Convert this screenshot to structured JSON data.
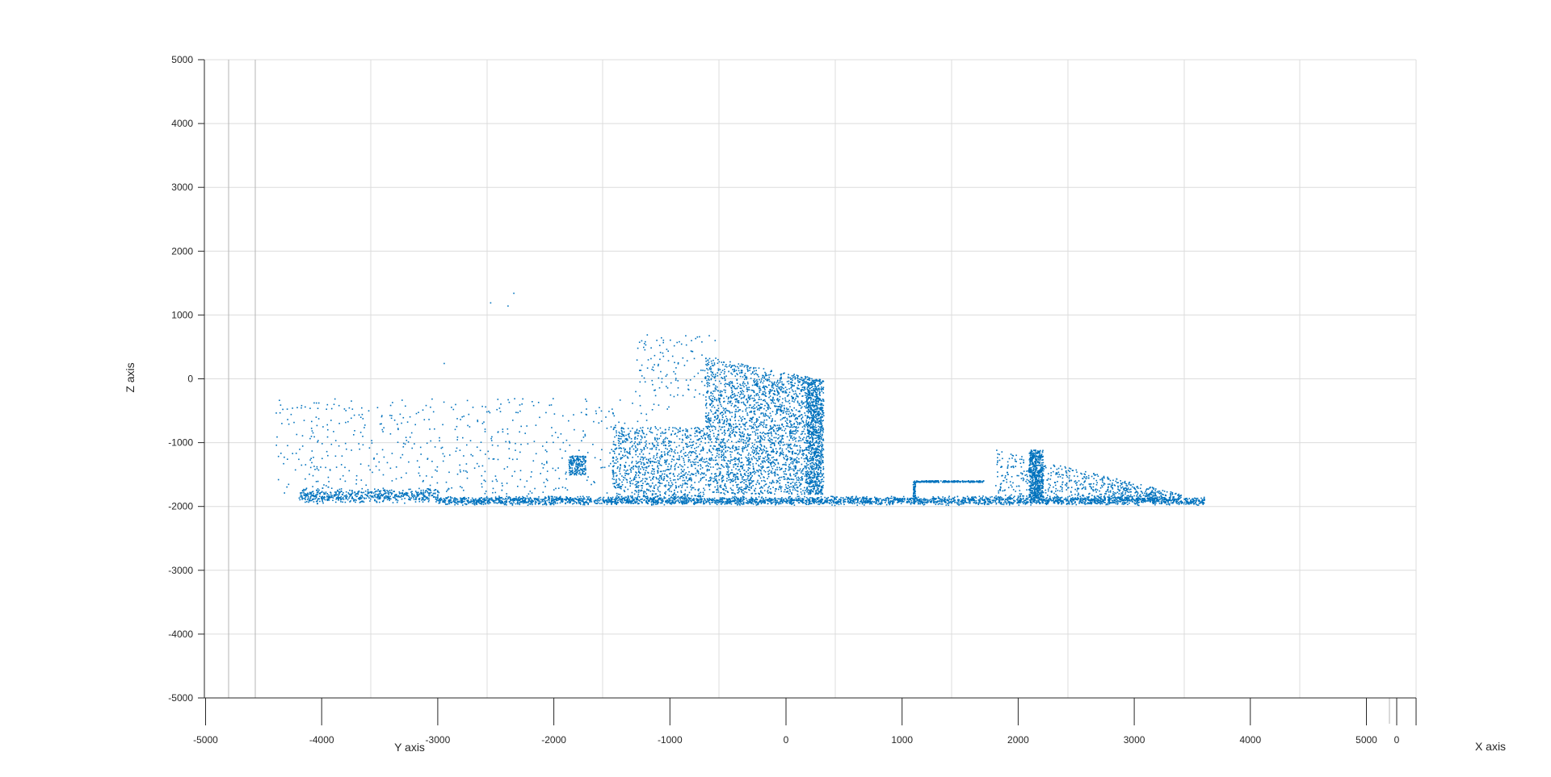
{
  "chart_data": {
    "type": "scatter",
    "title": "",
    "xlabel": "X axis",
    "ylabel": "Y axis",
    "zlabel": "Z axis",
    "view": "3-D scatter, nearly edge-on view",
    "grid": true,
    "y_axis_range": [
      -5000,
      5000
    ],
    "z_axis_range": [
      -5000,
      5000
    ],
    "y_ticks": [
      "-5000",
      "-4000",
      "-3000",
      "-2000",
      "-1000",
      "0",
      "1000",
      "2000",
      "3000",
      "4000",
      "5000"
    ],
    "z_ticks": [
      "5000",
      "4000",
      "3000",
      "2000",
      "1000",
      "0",
      "-1000",
      "-2000",
      "-3000",
      "-4000",
      "-5000"
    ],
    "x_ticks": [
      "0"
    ],
    "marker_color": "#0072BD",
    "series": [
      {
        "points_note": "point cloud; Y / Z values as read from the axes",
        "ground": {
          "y_range": [
            -4200,
            3600
          ],
          "z": -1900
        },
        "building_face": {
          "y_range": [
            -700,
            300
          ],
          "z_top": 350,
          "z_bottom": -1800
        },
        "wall_face": {
          "y_range": [
            170,
            320
          ],
          "z_range": [
            -1800,
            0
          ]
        },
        "pole": {
          "y": 2150,
          "z_range": [
            -1850,
            -1100
          ]
        },
        "low_box": {
          "y_range": [
            1100,
            1700
          ],
          "z_range": [
            -1900,
            -1600
          ]
        },
        "bush_left": {
          "y": -1800,
          "z_range": [
            -1500,
            -1200
          ]
        },
        "outliers": [
          [
            -2550,
            1200
          ],
          [
            -2350,
            1350
          ],
          [
            -2400,
            1150
          ],
          [
            -2950,
            250
          ]
        ]
      }
    ]
  }
}
